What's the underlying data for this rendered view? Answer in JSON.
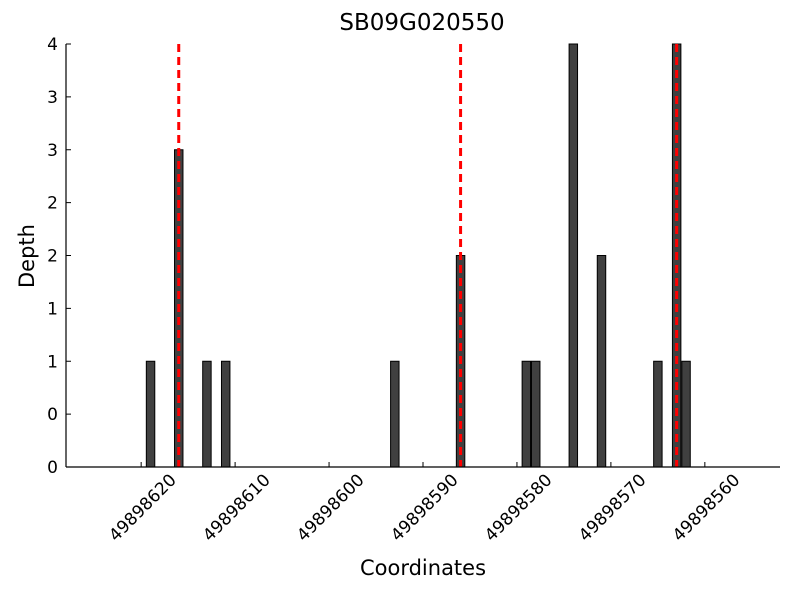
{
  "chart_data": {
    "type": "bar",
    "title": "SB09G020550",
    "x_label": "Coordinates",
    "y_label": "Depth",
    "x": [
      49898619,
      49898616,
      49898613,
      49898611,
      49898593,
      49898586,
      49898579,
      49898578,
      49898574,
      49898571,
      49898565,
      49898563,
      49898562
    ],
    "values": [
      1,
      3,
      1,
      1,
      1,
      2,
      1,
      1,
      4,
      2,
      1,
      4,
      1
    ],
    "color": "#404040",
    "vlines": [
      49898616,
      49898586,
      49898563
    ],
    "vline_color": "#ff0000",
    "xlim": [
      49898628,
      49898552
    ],
    "xticks": [
      49898620,
      49898610,
      49898600,
      49898590,
      49898580,
      49898570,
      49898560
    ],
    "ylim": [
      0,
      4
    ],
    "yticks": [
      0,
      {
        "value": 0.5,
        "label": "0"
      },
      1,
      {
        "value": 1.5,
        "label": "1"
      },
      2,
      {
        "value": 2.5,
        "label": "2"
      },
      3,
      {
        "value": 3.5,
        "label": "3"
      },
      4
    ]
  }
}
